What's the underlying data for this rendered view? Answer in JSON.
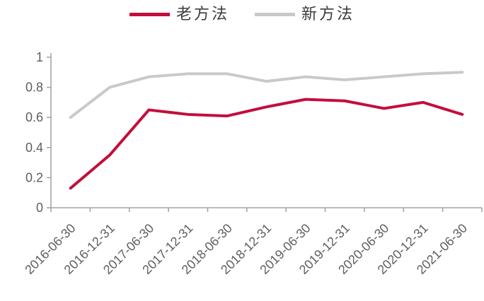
{
  "chart_data": {
    "type": "line",
    "title": "",
    "xlabel": "",
    "ylabel": "",
    "categories": [
      "2016-06-30",
      "2016-12-31",
      "2017-06-30",
      "2017-12-31",
      "2018-06-30",
      "2018-12-31",
      "2019-06-30",
      "2019-12-31",
      "2020-06-30",
      "2020-12-31",
      "2021-06-30"
    ],
    "series": [
      {
        "name": "老方法",
        "color": "#c30e3c",
        "values": [
          0.13,
          0.35,
          0.65,
          0.62,
          0.61,
          0.67,
          0.72,
          0.71,
          0.66,
          0.7,
          0.62
        ]
      },
      {
        "name": "新方法",
        "color": "#c9c9c9",
        "values": [
          0.6,
          0.8,
          0.87,
          0.89,
          0.89,
          0.84,
          0.87,
          0.85,
          0.87,
          0.89,
          0.9
        ]
      }
    ],
    "ylim": [
      0,
      1
    ],
    "yticks": [
      0,
      0.2,
      0.4,
      0.6,
      0.8,
      1
    ],
    "ytick_labels": [
      "0",
      "0.2",
      "0.4",
      "0.6",
      "0.8",
      "1"
    ],
    "grid": false,
    "legend_position": "top-center",
    "axis_color": "#a6a6a6",
    "tick_label_color": "#5f5f5f",
    "line_width": 4
  }
}
